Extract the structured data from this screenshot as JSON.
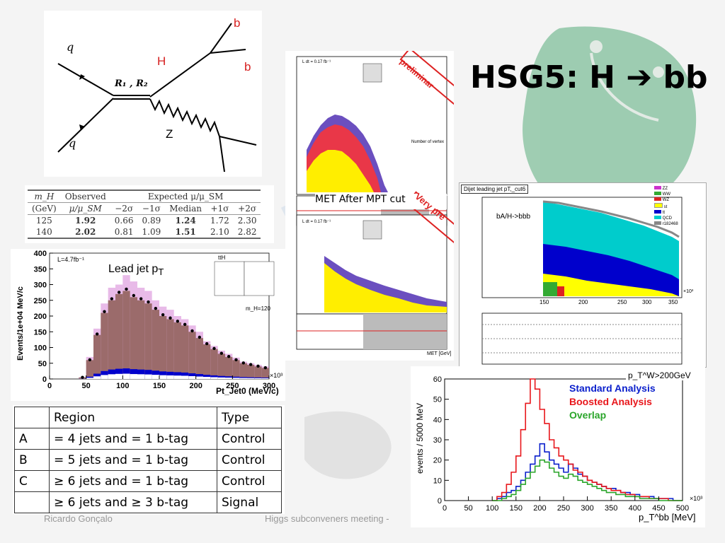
{
  "slide": {
    "title": "HSG5: H ➔ bb",
    "footer_left": "Ricardo Gonçalo",
    "footer_center": "Higgs subconveners meeting -"
  },
  "feynman": {
    "q_top": "q",
    "q_bottom": "q",
    "mediator": "R₁ , R₂",
    "higgs": "H",
    "z": "Z",
    "b_top": "b",
    "b_second": "b"
  },
  "results_table": {
    "header1": [
      "m_H",
      "Observed",
      "Expected μ/μ_SM"
    ],
    "header2": [
      "(GeV)",
      "μ/μ_SM",
      "−2σ",
      "−1σ",
      "Median",
      "+1σ",
      "+2σ"
    ],
    "rows": [
      [
        "125",
        "1.92",
        "0.66",
        "0.89",
        "1.24",
        "1.72",
        "2.30"
      ],
      [
        "140",
        "2.02",
        "0.81",
        "1.09",
        "1.51",
        "2.10",
        "2.82"
      ]
    ]
  },
  "region_table": {
    "headers": [
      "",
      "Region",
      "Type"
    ],
    "rows": [
      [
        "A",
        "= 4 jets and = 1 b-tag",
        "Control"
      ],
      [
        "B",
        "= 5 jets and = 1 b-tag",
        "Control"
      ],
      [
        "C",
        "≥ 6 jets and = 1 b-tag",
        "Control"
      ],
      [
        "",
        "≥ 6 jets and ≥ 3 b-tag",
        "Signal"
      ]
    ]
  },
  "lead_jet_plot": {
    "label": "Lead jet p",
    "label_sub": "T",
    "lumi": "L=4.7fb⁻¹",
    "legend_title": "ttH",
    "mass_label": "m_H=120",
    "x_unit": "×10³",
    "colors": {
      "signal_hatch": "#cc66cc",
      "bg_main": "#9b6b6b",
      "blue": "#0000cc",
      "green": "#009900"
    },
    "chart_data": {
      "type": "area",
      "xlabel": "Pt_Jet0 (MeV/c)",
      "ylabel": "Events/1e+04 MeV/c",
      "xlim": [
        0,
        300
      ],
      "ylim": [
        0,
        400
      ],
      "x_ticks": [
        "0",
        "50",
        "100",
        "150",
        "200",
        "250",
        "300"
      ],
      "y_ticks": [
        "0",
        "50",
        "100",
        "150",
        "200",
        "250",
        "300",
        "350",
        "400"
      ],
      "x": [
        40,
        50,
        60,
        70,
        80,
        90,
        100,
        110,
        120,
        130,
        140,
        150,
        160,
        170,
        180,
        190,
        200,
        210,
        220,
        230,
        240,
        250,
        260,
        270,
        280,
        290
      ],
      "series": [
        {
          "values": [
            5,
            60,
            140,
            210,
            250,
            270,
            280,
            260,
            250,
            240,
            220,
            200,
            190,
            180,
            170,
            150,
            130,
            110,
            95,
            80,
            70,
            60,
            50,
            45,
            40,
            35
          ]
        },
        {
          "values": [
            5,
            70,
            160,
            240,
            290,
            300,
            330,
            310,
            290,
            280,
            250,
            230,
            220,
            200,
            190,
            170,
            150,
            120,
            105,
            90,
            80,
            68,
            55,
            50,
            45,
            40
          ]
        }
      ]
    }
  },
  "met_plot": {
    "caption": "MET After MPT cut",
    "stamp_top": "preliminar",
    "stamp_bottom": "Very pre",
    "lumi": "L dt = 0.17 fb⁻¹",
    "top_xlabel": "Number of vertex",
    "bottom_xlabel": "MET [GeV]"
  },
  "dijet_plot": {
    "title": "Dijet leading jet pT,_cut6",
    "annotation": "bA/H->bbb",
    "x_ticks": [
      "150",
      "200",
      "250",
      "300",
      "350"
    ],
    "x_unit": "×10³",
    "legend": [
      "ZZ",
      "WW",
      "WZ",
      "st",
      "tt",
      "QCD",
      "r182468"
    ],
    "legend_colors": [
      "#cc33cc",
      "#33aa33",
      "#dd2222",
      "#ffff00",
      "#0000cc",
      "#00cccc",
      "#888888"
    ]
  },
  "boosted_plot": {
    "annotation": "p_T^W>200GeV",
    "legend": [
      {
        "name": "Standard Analysis",
        "color": "#0a1fcc"
      },
      {
        "name": "Boosted Analysis",
        "color": "#e8161b"
      },
      {
        "name": "Overlap",
        "color": "#2aa52a"
      }
    ],
    "x_unit": "×10³",
    "chart_data": {
      "type": "line",
      "xlabel": "p_T^bb [MeV]",
      "ylabel": "events / 5000 MeV",
      "xlim": [
        0,
        500
      ],
      "ylim": [
        0,
        60
      ],
      "x_ticks": [
        "0",
        "50",
        "100",
        "150",
        "200",
        "250",
        "300",
        "350",
        "400",
        "450",
        "500"
      ],
      "y_ticks": [
        "0",
        "10",
        "20",
        "30",
        "40",
        "50",
        "60"
      ],
      "x": [
        100,
        110,
        120,
        130,
        140,
        150,
        160,
        170,
        180,
        190,
        200,
        210,
        220,
        230,
        240,
        250,
        260,
        270,
        280,
        290,
        300,
        310,
        320,
        330,
        340,
        350,
        360,
        370,
        380,
        390,
        400,
        410,
        420,
        430,
        440,
        450,
        460,
        470,
        480,
        490
      ],
      "series": [
        {
          "name": "Standard Analysis",
          "values": [
            0,
            1,
            2,
            4,
            5,
            7,
            10,
            14,
            18,
            22,
            28,
            24,
            20,
            18,
            16,
            14,
            18,
            16,
            13,
            12,
            10,
            9,
            8,
            7,
            6,
            6,
            5,
            4,
            4,
            3,
            3,
            2,
            2,
            2,
            1,
            1,
            1,
            1,
            0,
            0
          ]
        },
        {
          "name": "Boosted Analysis",
          "values": [
            0,
            2,
            4,
            8,
            14,
            22,
            35,
            48,
            60,
            55,
            45,
            38,
            30,
            26,
            22,
            20,
            18,
            15,
            14,
            12,
            10,
            9,
            8,
            7,
            6,
            5,
            5,
            4,
            3,
            3,
            2,
            2,
            2,
            1,
            1,
            1,
            1,
            0,
            0,
            0
          ]
        },
        {
          "name": "Overlap",
          "values": [
            0,
            0,
            1,
            2,
            3,
            5,
            8,
            11,
            14,
            17,
            20,
            19,
            16,
            14,
            12,
            11,
            13,
            12,
            10,
            9,
            8,
            7,
            6,
            5,
            4,
            4,
            3,
            3,
            2,
            2,
            2,
            1,
            1,
            1,
            1,
            0,
            0,
            0,
            0,
            0
          ]
        }
      ]
    }
  }
}
